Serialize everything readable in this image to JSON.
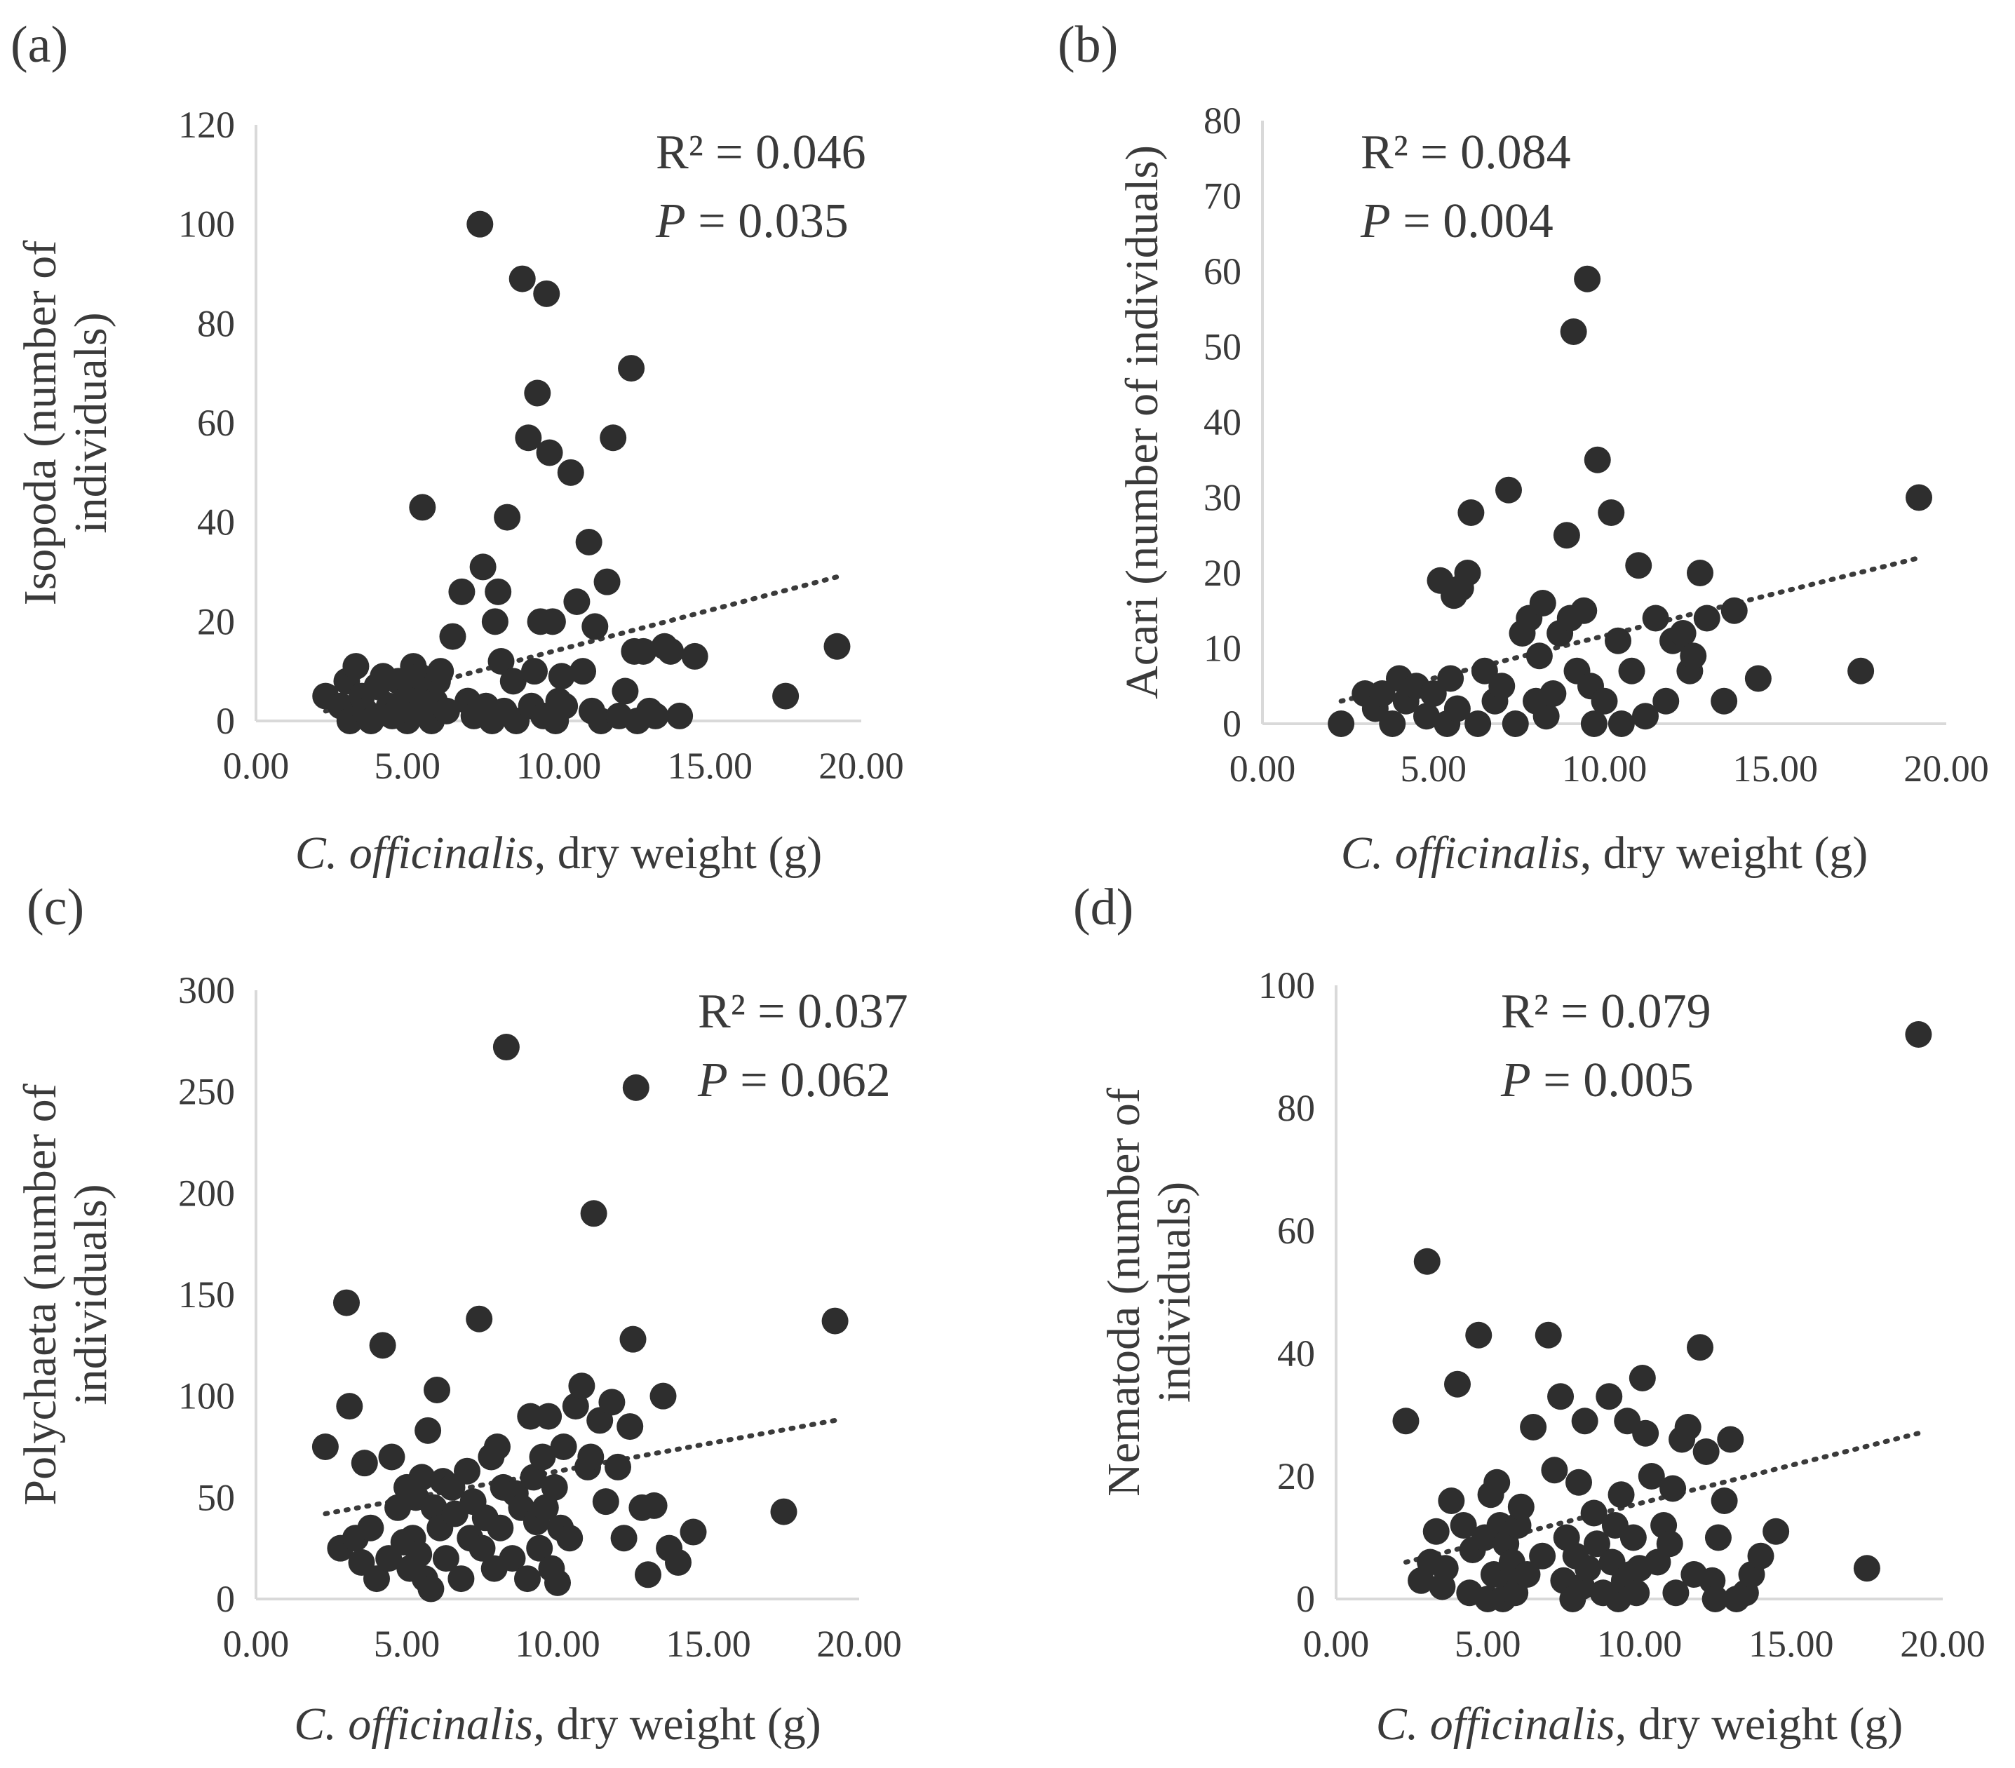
{
  "figure": {
    "panels": [
      {
        "id": "a",
        "label": "(a)"
      },
      {
        "id": "b",
        "label": "(b)"
      },
      {
        "id": "c",
        "label": "(c)"
      },
      {
        "id": "d",
        "label": "(d)"
      }
    ]
  },
  "chart_data": [
    {
      "type": "scatter",
      "panel": "(a)",
      "xlabel_italic": "C. officinalis",
      "xlabel_rest": ", dry weight (g)",
      "ylabel_lines": [
        "Isopoda (number of",
        "individuals)"
      ],
      "xlim": [
        0,
        20
      ],
      "ylim": [
        0,
        120
      ],
      "xticks": [
        "0.00",
        "5.00",
        "10.00",
        "15.00",
        "20.00"
      ],
      "yticks": [
        "0",
        "20",
        "40",
        "60",
        "80",
        "100",
        "120"
      ],
      "r2_text": "R² = 0.046",
      "p_label": "P",
      "p_value_text": " = 0.035",
      "trendline": {
        "x": [
          2.3,
          19.2
        ],
        "y": [
          2,
          29
        ]
      },
      "x": [
        2.3,
        2.8,
        3.0,
        3.1,
        3.3,
        3.5,
        3.6,
        3.8,
        4.0,
        4.2,
        4.4,
        4.5,
        4.7,
        4.9,
        5.0,
        5.1,
        5.2,
        5.3,
        5.4,
        5.5,
        5.6,
        5.7,
        5.8,
        5.9,
        6.0,
        6.1,
        6.3,
        6.5,
        6.8,
        7.0,
        7.2,
        7.4,
        7.5,
        7.6,
        7.8,
        7.9,
        8.0,
        8.1,
        8.2,
        8.3,
        8.5,
        8.6,
        8.8,
        9.0,
        9.1,
        9.2,
        9.3,
        9.4,
        9.5,
        9.6,
        9.7,
        9.8,
        9.9,
        10.0,
        10.1,
        10.2,
        10.4,
        10.6,
        10.8,
        11.0,
        11.1,
        11.2,
        11.4,
        11.6,
        11.8,
        12.0,
        12.2,
        12.4,
        12.5,
        12.6,
        12.8,
        13.0,
        13.2,
        13.5,
        13.7,
        14.0,
        14.5,
        17.5,
        19.2
      ],
      "y": [
        5,
        3,
        8,
        0,
        11,
        5,
        2,
        0,
        7,
        9,
        3,
        1,
        8,
        4,
        0,
        2,
        11,
        6,
        9,
        43,
        3,
        7,
        0,
        4,
        8,
        10,
        2,
        17,
        26,
        4,
        1,
        100,
        31,
        3,
        0,
        20,
        26,
        12,
        2,
        41,
        8,
        0,
        89,
        57,
        3,
        10,
        66,
        20,
        1,
        86,
        54,
        20,
        0,
        4,
        9,
        3,
        50,
        24,
        10,
        36,
        2,
        19,
        0,
        28,
        57,
        1,
        6,
        71,
        14,
        0,
        14,
        2,
        1,
        15,
        14,
        1,
        13,
        5,
        15
      ]
    },
    {
      "type": "scatter",
      "panel": "(b)",
      "xlabel_italic": "C. officinalis",
      "xlabel_rest": ", dry weight (g)",
      "ylabel_lines": [
        "Acari (number of individuals)"
      ],
      "xlim": [
        0,
        20
      ],
      "ylim": [
        0,
        80
      ],
      "xticks": [
        "0.00",
        "5.00",
        "10.00",
        "15.00",
        "20.00"
      ],
      "yticks": [
        "0",
        "10",
        "20",
        "30",
        "40",
        "50",
        "60",
        "70",
        "80"
      ],
      "r2_text": "R² = 0.084",
      "p_label": "P",
      "p_value_text": " = 0.004",
      "trendline": {
        "x": [
          2.3,
          19.2
        ],
        "y": [
          3,
          22
        ]
      },
      "x": [
        2.3,
        3.0,
        3.3,
        3.5,
        3.8,
        4.0,
        4.2,
        4.5,
        4.8,
        5.0,
        5.2,
        5.4,
        5.5,
        5.6,
        5.7,
        5.8,
        6.0,
        6.1,
        6.3,
        6.5,
        6.8,
        7.0,
        7.2,
        7.4,
        7.6,
        7.8,
        8.0,
        8.1,
        8.2,
        8.3,
        8.5,
        8.7,
        8.9,
        9.0,
        9.1,
        9.2,
        9.4,
        9.5,
        9.6,
        9.7,
        9.8,
        10.0,
        10.2,
        10.4,
        10.5,
        10.8,
        11.0,
        11.2,
        11.5,
        11.8,
        12.0,
        12.3,
        12.5,
        12.6,
        12.8,
        13.0,
        13.5,
        13.8,
        14.5,
        17.5,
        19.2
      ],
      "y": [
        0,
        4,
        2,
        4,
        0,
        6,
        3,
        5,
        1,
        4,
        19,
        0,
        6,
        17,
        2,
        18,
        20,
        28,
        0,
        7,
        3,
        5,
        31,
        0,
        12,
        14,
        3,
        9,
        16,
        1,
        4,
        12,
        25,
        14,
        52,
        7,
        15,
        59,
        5,
        0,
        35,
        3,
        28,
        11,
        0,
        7,
        21,
        1,
        14,
        3,
        11,
        12,
        7,
        9,
        20,
        14,
        3,
        15,
        6,
        7,
        30
      ]
    },
    {
      "type": "scatter",
      "panel": "(c)",
      "xlabel_italic": "C. officinalis",
      "xlabel_rest": ", dry weight (g)",
      "ylabel_lines": [
        "Polychaeta (number of",
        "individuals)"
      ],
      "xlim": [
        0,
        20
      ],
      "ylim": [
        0,
        300
      ],
      "xticks": [
        "0.00",
        "5.00",
        "10.00",
        "15.00",
        "20.00"
      ],
      "yticks": [
        "0",
        "50",
        "100",
        "150",
        "200",
        "250",
        "300"
      ],
      "r2_text": "R² = 0.037",
      "p_label": "P",
      "p_value_text": " = 0.062",
      "trendline": {
        "x": [
          2.3,
          19.2
        ],
        "y": [
          42,
          88
        ]
      },
      "x": [
        2.3,
        2.8,
        3.0,
        3.1,
        3.3,
        3.5,
        3.6,
        3.8,
        4.0,
        4.2,
        4.4,
        4.5,
        4.7,
        4.9,
        5.0,
        5.1,
        5.2,
        5.3,
        5.4,
        5.5,
        5.6,
        5.7,
        5.8,
        5.9,
        6.0,
        6.1,
        6.2,
        6.3,
        6.5,
        6.6,
        6.8,
        7.0,
        7.1,
        7.2,
        7.4,
        7.5,
        7.6,
        7.8,
        7.9,
        8.0,
        8.1,
        8.2,
        8.3,
        8.5,
        8.6,
        8.8,
        9.0,
        9.1,
        9.2,
        9.3,
        9.4,
        9.5,
        9.6,
        9.7,
        9.8,
        9.9,
        10.0,
        10.1,
        10.2,
        10.4,
        10.6,
        10.8,
        11.0,
        11.1,
        11.2,
        11.4,
        11.6,
        11.8,
        12.0,
        12.2,
        12.4,
        12.5,
        12.6,
        12.8,
        13.0,
        13.2,
        13.5,
        13.7,
        14.0,
        14.5,
        17.5,
        19.2
      ],
      "y": [
        75,
        25,
        146,
        95,
        30,
        18,
        67,
        35,
        10,
        125,
        20,
        70,
        45,
        28,
        55,
        15,
        30,
        50,
        22,
        60,
        10,
        83,
        5,
        45,
        103,
        35,
        58,
        20,
        55,
        42,
        10,
        63,
        30,
        48,
        138,
        25,
        40,
        70,
        15,
        75,
        35,
        55,
        272,
        20,
        52,
        45,
        10,
        90,
        60,
        38,
        25,
        70,
        45,
        90,
        15,
        55,
        8,
        35,
        75,
        30,
        95,
        105,
        65,
        70,
        190,
        88,
        48,
        97,
        65,
        30,
        85,
        128,
        252,
        45,
        12,
        46,
        100,
        25,
        18,
        33,
        43,
        137
      ]
    },
    {
      "type": "scatter",
      "panel": "(d)",
      "xlabel_italic": "C. officinalis",
      "xlabel_rest": ", dry weight (g)",
      "ylabel_lines": [
        "Nematoda (number of",
        "individuals)"
      ],
      "xlim": [
        0,
        20
      ],
      "ylim": [
        0,
        100
      ],
      "xticks": [
        "0.00",
        "5.00",
        "10.00",
        "15.00",
        "20.00"
      ],
      "yticks": [
        "0",
        "20",
        "40",
        "60",
        "80",
        "100"
      ],
      "r2_text": "R² = 0.079",
      "p_label": "P",
      "p_value_text": " = 0.005",
      "trendline": {
        "x": [
          2.3,
          19.2
        ],
        "y": [
          6,
          27
        ]
      },
      "x": [
        2.3,
        2.8,
        3.0,
        3.1,
        3.3,
        3.5,
        3.6,
        3.8,
        4.0,
        4.2,
        4.4,
        4.5,
        4.7,
        4.9,
        5.0,
        5.1,
        5.2,
        5.3,
        5.4,
        5.5,
        5.6,
        5.7,
        5.8,
        5.9,
        6.0,
        6.1,
        6.3,
        6.5,
        6.8,
        7.0,
        7.2,
        7.4,
        7.5,
        7.6,
        7.8,
        7.9,
        8.0,
        8.1,
        8.2,
        8.3,
        8.5,
        8.6,
        8.8,
        9.0,
        9.1,
        9.2,
        9.3,
        9.4,
        9.5,
        9.6,
        9.7,
        9.8,
        9.9,
        10.0,
        10.1,
        10.2,
        10.4,
        10.6,
        10.8,
        11.0,
        11.1,
        11.2,
        11.4,
        11.6,
        11.8,
        12.0,
        12.2,
        12.4,
        12.5,
        12.6,
        12.8,
        13.0,
        13.2,
        13.5,
        13.7,
        14.0,
        14.5,
        17.5,
        19.2
      ],
      "y": [
        29,
        3,
        55,
        6,
        11,
        2,
        5,
        16,
        35,
        12,
        1,
        8,
        43,
        10,
        0,
        17,
        4,
        19,
        12,
        0,
        9,
        3,
        6,
        1,
        12,
        15,
        4,
        28,
        7,
        43,
        21,
        33,
        3,
        10,
        0,
        7,
        19,
        2,
        29,
        5,
        14,
        9,
        1,
        33,
        6,
        12,
        0,
        17,
        3,
        29,
        4,
        10,
        1,
        5,
        36,
        27,
        20,
        6,
        12,
        9,
        18,
        1,
        26,
        28,
        4,
        41,
        24,
        3,
        0,
        10,
        16,
        26,
        0,
        1,
        4,
        7,
        11,
        5,
        92
      ]
    }
  ]
}
